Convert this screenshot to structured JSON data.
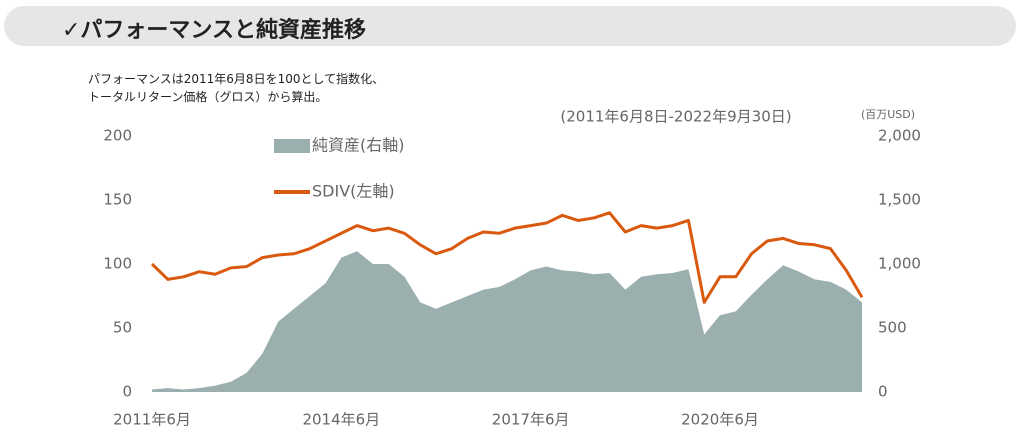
{
  "header": {
    "title": "✓パフォーマンスと純資産推移"
  },
  "notes": [
    "パフォーマンスは2011年6月8日を100として指数化、",
    "トータルリターン価格（グロス）から算出。"
  ],
  "chart_data": {
    "type": "line_area",
    "subtitle": "(2011年6月8日-2022年9月30日)",
    "y2_unit": "(百万USD)",
    "x": [
      "2011-06",
      "2011-09",
      "2011-12",
      "2012-03",
      "2012-06",
      "2012-09",
      "2012-12",
      "2013-03",
      "2013-06",
      "2013-09",
      "2013-12",
      "2014-03",
      "2014-06",
      "2014-09",
      "2014-12",
      "2015-03",
      "2015-06",
      "2015-09",
      "2015-12",
      "2016-03",
      "2016-06",
      "2016-09",
      "2016-12",
      "2017-03",
      "2017-06",
      "2017-09",
      "2017-12",
      "2018-03",
      "2018-06",
      "2018-09",
      "2018-12",
      "2019-03",
      "2019-06",
      "2019-09",
      "2019-12",
      "2020-03",
      "2020-06",
      "2020-09",
      "2020-12",
      "2021-03",
      "2021-06",
      "2021-09",
      "2021-12",
      "2022-03",
      "2022-06",
      "2022-09"
    ],
    "series": [
      {
        "name": "純資産(右軸)",
        "color": "#9bb0ae",
        "kind": "area",
        "axis": "y2",
        "values": [
          20,
          30,
          20,
          30,
          50,
          80,
          150,
          300,
          550,
          650,
          750,
          850,
          1050,
          1100,
          1000,
          1000,
          900,
          700,
          650,
          700,
          750,
          800,
          820,
          880,
          950,
          980,
          950,
          940,
          920,
          930,
          800,
          900,
          920,
          930,
          960,
          450,
          600,
          630,
          760,
          880,
          990,
          940,
          880,
          860,
          800,
          700
        ]
      },
      {
        "name": "SDIV(左軸)",
        "color": "#d9590f",
        "kind": "line",
        "axis": "y",
        "values": [
          100,
          88,
          90,
          94,
          92,
          97,
          98,
          105,
          107,
          108,
          112,
          118,
          124,
          130,
          126,
          128,
          124,
          115,
          108,
          112,
          120,
          125,
          124,
          128,
          130,
          132,
          138,
          134,
          136,
          140,
          125,
          130,
          128,
          130,
          134,
          70,
          90,
          90,
          108,
          118,
          120,
          116,
          115,
          112,
          95,
          74
        ]
      }
    ],
    "xticks": [
      {
        "value": "2011-06",
        "label": "2011年6月"
      },
      {
        "value": "2014-06",
        "label": "2014年6月"
      },
      {
        "value": "2017-06",
        "label": "2017年6月"
      },
      {
        "value": "2020-06",
        "label": "2020年6月"
      }
    ],
    "ylim": [
      0,
      200
    ],
    "yticks": [
      0,
      50,
      100,
      150,
      200
    ],
    "y2lim": [
      0,
      2000
    ],
    "y2ticks": [
      0,
      {
        "value": 500,
        "label": "500"
      },
      {
        "value": 1000,
        "label": "1,000"
      },
      {
        "value": 1500,
        "label": "1,500"
      },
      {
        "value": 2000,
        "label": "2,000"
      }
    ]
  }
}
